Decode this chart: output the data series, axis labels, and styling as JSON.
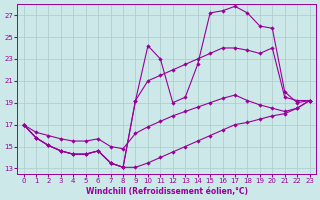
{
  "xlabel": "Windchill (Refroidissement éolien,°C)",
  "xlim": [
    -0.5,
    23.5
  ],
  "ylim": [
    12.5,
    28.0
  ],
  "xticks": [
    0,
    1,
    2,
    3,
    4,
    5,
    6,
    7,
    8,
    9,
    10,
    11,
    12,
    13,
    14,
    15,
    16,
    17,
    18,
    19,
    20,
    21,
    22,
    23
  ],
  "yticks": [
    13,
    15,
    17,
    19,
    21,
    23,
    25,
    27
  ],
  "bg_color": "#cce8e8",
  "line_color": "#990099",
  "grid_color": "#aacccc",
  "lines": [
    {
      "x": [
        0,
        1,
        2,
        3,
        4,
        5,
        6,
        7,
        8,
        9,
        10,
        11,
        12,
        13,
        14,
        15,
        16,
        17,
        18,
        19,
        20,
        21,
        22,
        23
      ],
      "y": [
        17,
        15.8,
        15.1,
        14.6,
        14.3,
        14.3,
        14.6,
        13.5,
        13.1,
        19.2,
        24.2,
        23.0,
        19.0,
        19.5,
        22.5,
        27.2,
        27.4,
        27.8,
        27.2,
        26.0,
        25.8,
        20.0,
        19.0,
        19.2
      ]
    },
    {
      "x": [
        0,
        1,
        2,
        3,
        4,
        5,
        6,
        7,
        8,
        9,
        10,
        11,
        12,
        13,
        14,
        15,
        16,
        17,
        18,
        19,
        20,
        21,
        22,
        23
      ],
      "y": [
        17,
        15.8,
        15.1,
        14.6,
        14.3,
        14.3,
        14.6,
        13.5,
        13.1,
        19.2,
        21.0,
        21.5,
        22.0,
        22.5,
        23.0,
        23.5,
        24.0,
        24.0,
        23.8,
        23.5,
        24.0,
        19.5,
        19.2,
        19.2
      ]
    },
    {
      "x": [
        0,
        1,
        2,
        3,
        4,
        5,
        6,
        7,
        8,
        9,
        10,
        11,
        12,
        13,
        14,
        15,
        16,
        17,
        18,
        19,
        20,
        21,
        22,
        23
      ],
      "y": [
        17,
        16.3,
        16.0,
        15.7,
        15.5,
        15.5,
        15.7,
        15.0,
        14.8,
        16.2,
        16.8,
        17.3,
        17.8,
        18.2,
        18.6,
        19.0,
        19.4,
        19.7,
        19.2,
        18.8,
        18.5,
        18.2,
        18.5,
        19.2
      ]
    },
    {
      "x": [
        0,
        1,
        2,
        3,
        4,
        5,
        6,
        7,
        8,
        9,
        10,
        11,
        12,
        13,
        14,
        15,
        16,
        17,
        18,
        19,
        20,
        21,
        22,
        23
      ],
      "y": [
        17,
        15.8,
        15.1,
        14.6,
        14.3,
        14.3,
        14.6,
        13.5,
        13.1,
        13.1,
        13.5,
        14.0,
        14.5,
        15.0,
        15.5,
        16.0,
        16.5,
        17.0,
        17.2,
        17.5,
        17.8,
        18.0,
        18.5,
        19.2
      ]
    }
  ]
}
